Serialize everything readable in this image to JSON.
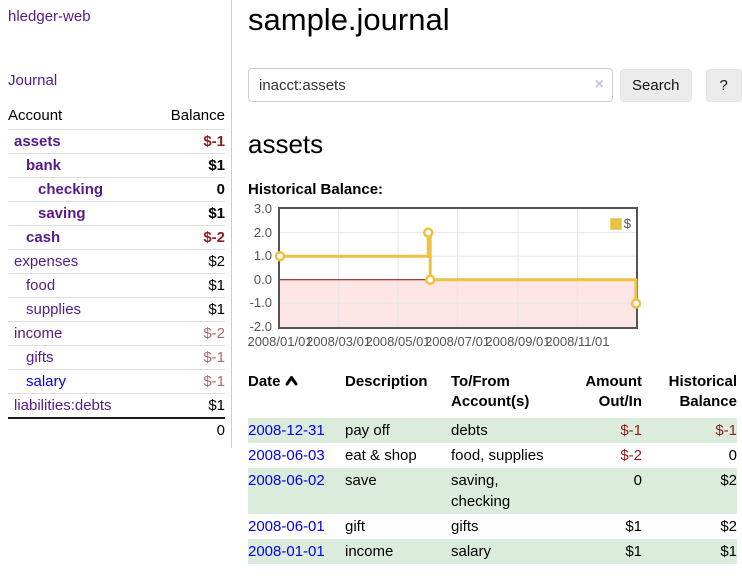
{
  "app": {
    "brand": "hledger-web",
    "nav_journal": "Journal"
  },
  "sidebar": {
    "table_headers": {
      "account": "Account",
      "balance": "Balance"
    },
    "accounts": [
      {
        "name": "assets",
        "balance": "$-1",
        "level": 1,
        "emph": true,
        "neg": "strong"
      },
      {
        "name": "bank",
        "balance": "$1",
        "level": 2,
        "emph": true,
        "neg": "none"
      },
      {
        "name": "checking",
        "balance": "0",
        "level": 3,
        "emph": true,
        "neg": "none"
      },
      {
        "name": "saving",
        "balance": "$1",
        "level": 3,
        "emph": true,
        "neg": "none"
      },
      {
        "name": "cash",
        "balance": "$-2",
        "level": 2,
        "emph": true,
        "neg": "strong"
      },
      {
        "name": "expenses",
        "balance": "$2",
        "level": 1,
        "emph": false,
        "neg": "none"
      },
      {
        "name": "food",
        "balance": "$1",
        "level": 2,
        "emph": false,
        "neg": "none"
      },
      {
        "name": "supplies",
        "balance": "$1",
        "level": 2,
        "emph": false,
        "neg": "none"
      },
      {
        "name": "income",
        "balance": "$-2",
        "level": 1,
        "emph": false,
        "neg": "soft"
      },
      {
        "name": "gifts",
        "balance": "$-1",
        "level": 2,
        "emph": false,
        "neg": "soft"
      },
      {
        "name": "salary",
        "balance": "$-1",
        "level": 2,
        "emph": false,
        "neg": "soft",
        "link_style": "unvisited"
      },
      {
        "name": "liabilities:debts",
        "balance": "$1",
        "level": 1,
        "emph": false,
        "neg": "none"
      }
    ],
    "total": "0"
  },
  "main": {
    "title": "sample.journal",
    "search": {
      "value": "inacct:assets",
      "clear_icon": "×",
      "search_label": "Search",
      "help_label": "?"
    },
    "account_heading": "assets",
    "chart_title": "Historical Balance:"
  },
  "chart_data": {
    "type": "line",
    "step": true,
    "title": "Historical Balance:",
    "x_start": "2008-01-01",
    "x_end": "2008-12-31",
    "x_total_days": 365,
    "x_ticks": [
      "2008/01/01",
      "2008/03/01",
      "2008/05/01",
      "2008/07/01",
      "2008/09/01",
      "2008/11/01"
    ],
    "y_ticks": [
      "3.0",
      "2.0",
      "1.0",
      "0.0",
      "-1.0",
      "-2.0"
    ],
    "ylim": [
      -2,
      3
    ],
    "series": [
      {
        "name": "$",
        "color": "#edc240",
        "points": [
          [
            "2008-01-01",
            1
          ],
          [
            "2008-06-01",
            2
          ],
          [
            "2008-06-03",
            0
          ],
          [
            "2008-12-31",
            -1
          ]
        ]
      }
    ],
    "legend_position": "top-right",
    "grid": true,
    "grid_color": "#e6e6e6",
    "border_color": "#545454",
    "negative_region_color": "#fce5e5",
    "zero_line_color": "#8b0000"
  },
  "register": {
    "headers": {
      "date": "Date",
      "description": "Description",
      "accounts": "To/From Account(s)",
      "amount": "Amount Out/In",
      "balance": "Historical Balance"
    },
    "rows": [
      {
        "date": "2008-12-31",
        "description": "pay off",
        "accounts": "debts",
        "amount": "$-1",
        "balance": "$-1"
      },
      {
        "date": "2008-06-03",
        "description": "eat & shop",
        "accounts": "food, supplies",
        "amount": "$-2",
        "balance": "0"
      },
      {
        "date": "2008-06-02",
        "description": "save",
        "accounts": "saving, checking",
        "amount": "0",
        "balance": "$2"
      },
      {
        "date": "2008-06-01",
        "description": "gift",
        "accounts": "gifts",
        "amount": "$1",
        "balance": "$2"
      },
      {
        "date": "2008-01-01",
        "description": "income",
        "accounts": "salary",
        "amount": "$1",
        "balance": "$1"
      }
    ]
  }
}
